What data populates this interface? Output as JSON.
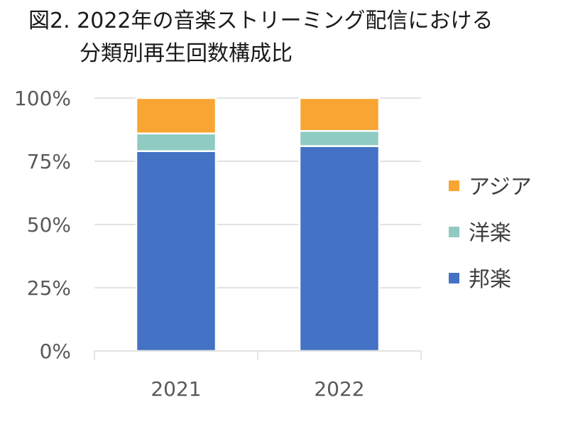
{
  "title": {
    "line1": "図2. 2022年の音楽ストリーミング配信における",
    "line2": "分類別再生回数構成比"
  },
  "chart_data": {
    "type": "bar",
    "stacked": true,
    "categories": [
      "2021",
      "2022"
    ],
    "series": [
      {
        "name": "邦楽",
        "values": [
          79,
          81
        ],
        "color": "#4472c4"
      },
      {
        "name": "洋楽",
        "values": [
          7,
          6
        ],
        "color": "#8fcbc2"
      },
      {
        "name": "アジア",
        "values": [
          14,
          13
        ],
        "color": "#f9a533"
      }
    ],
    "ylim": [
      0,
      100
    ],
    "yticks": [
      "0%",
      "25%",
      "50%",
      "75%",
      "100%"
    ],
    "grid": true,
    "legend": "right"
  }
}
